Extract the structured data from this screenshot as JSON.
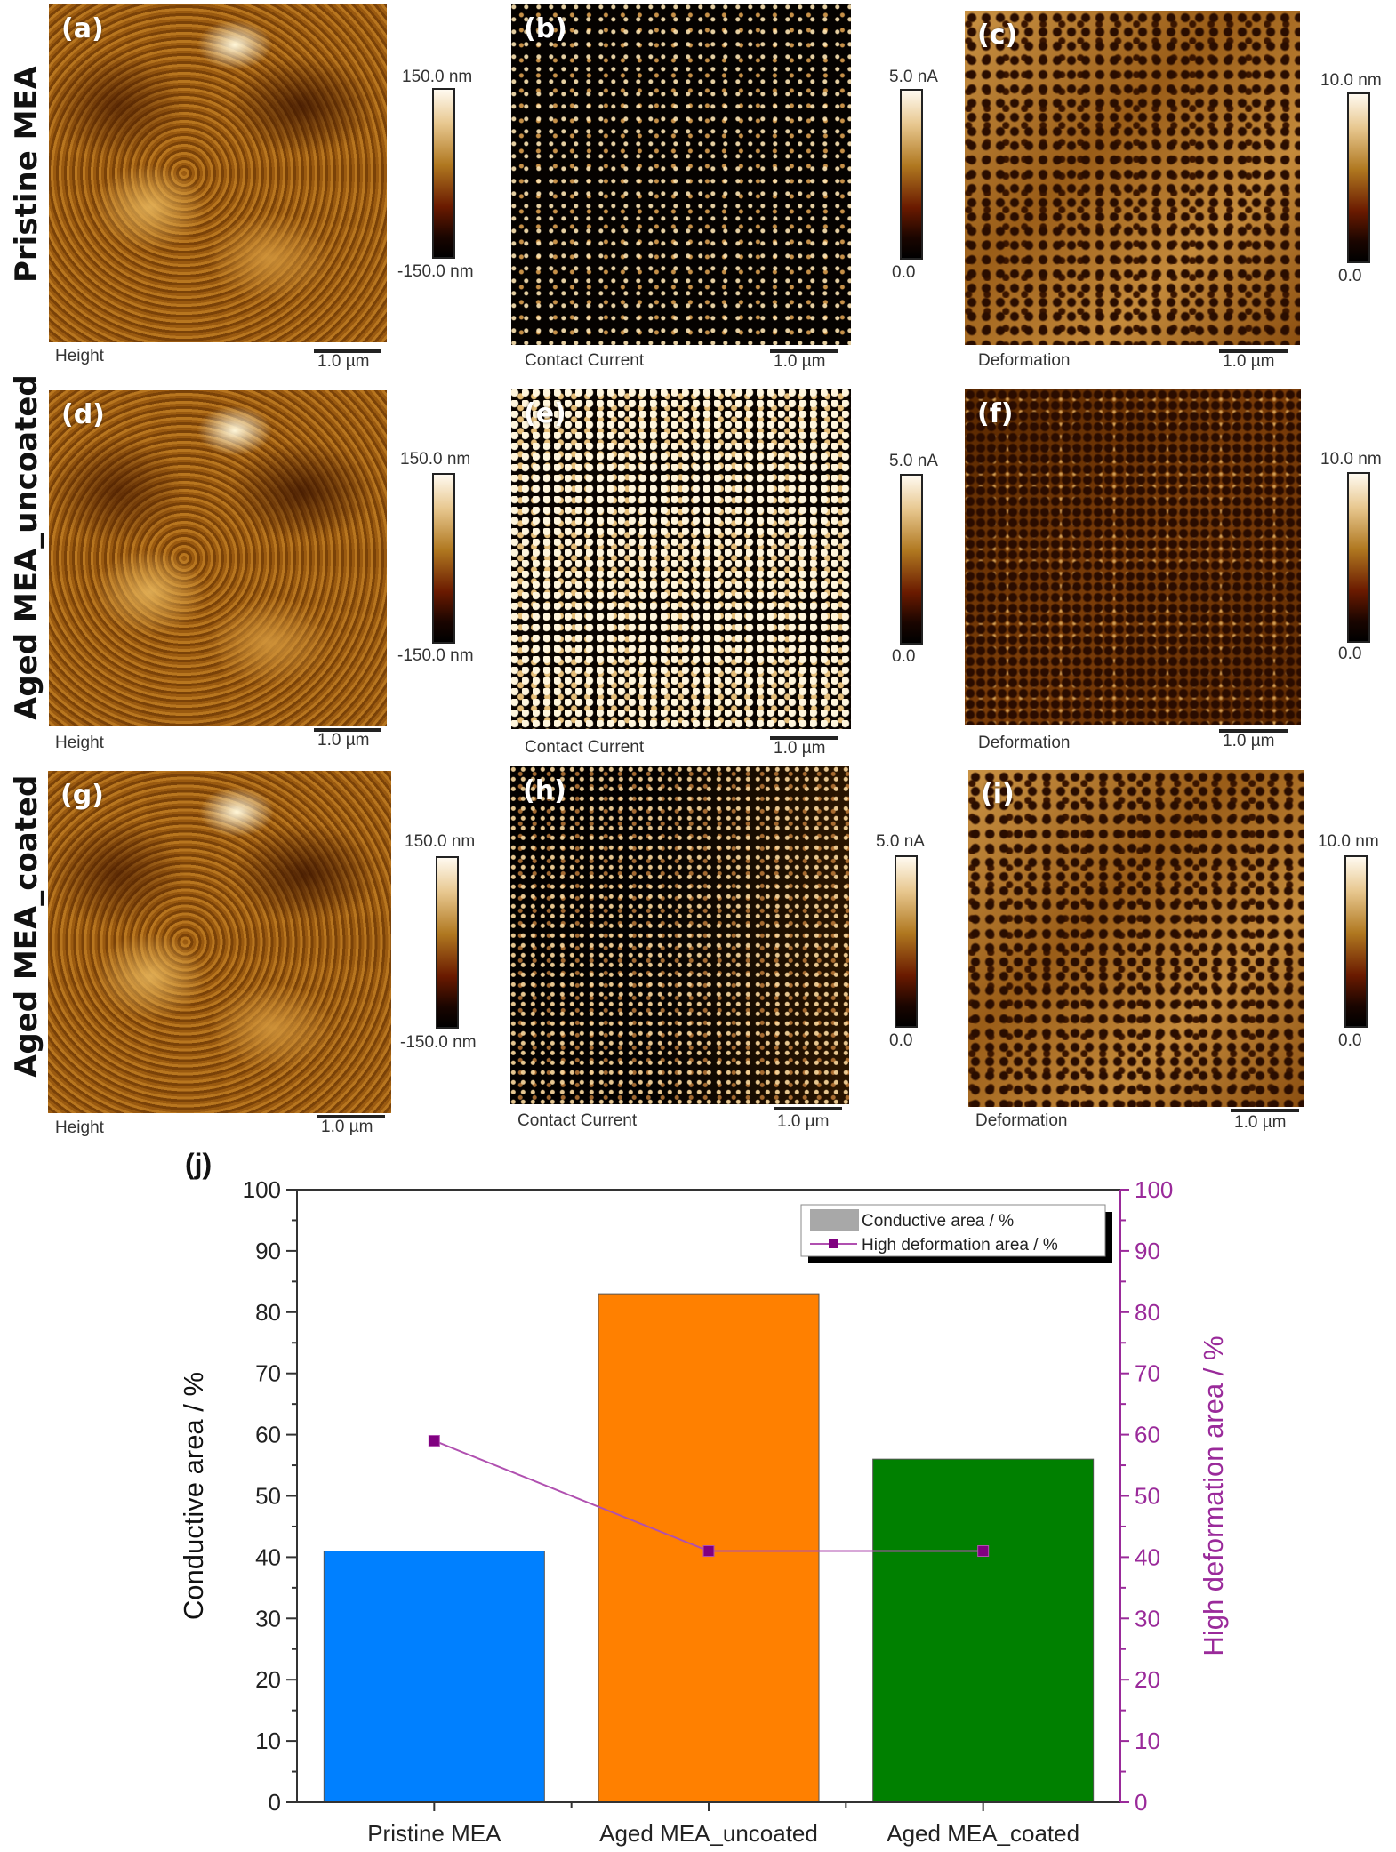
{
  "row_labels": [
    "Pristine MEA",
    "Aged MEA_uncoated",
    "Aged MEA_coated"
  ],
  "panels": [
    {
      "letter": "(a)",
      "channel": "Height",
      "scale": "1.0 µm",
      "cbar_top": "150.0 nm",
      "cbar_bottom": "-150.0 nm",
      "type": "height"
    },
    {
      "letter": "(b)",
      "channel": "Contact Current",
      "scale": "1.0 µm",
      "cbar_top": "5.0 nA",
      "cbar_bottom": "0.0",
      "type": "current"
    },
    {
      "letter": "(c)",
      "channel": "Deformation",
      "scale": "1.0 µm",
      "cbar_top": "10.0 nm",
      "cbar_bottom": "0.0",
      "type": "deformation"
    },
    {
      "letter": "(d)",
      "channel": "Height",
      "scale": "1.0 µm",
      "cbar_top": "150.0 nm",
      "cbar_bottom": "-150.0 nm",
      "type": "height"
    },
    {
      "letter": "(e)",
      "channel": "Contact Current",
      "scale": "1.0 µm",
      "cbar_top": "5.0 nA",
      "cbar_bottom": "0.0",
      "type": "current"
    },
    {
      "letter": "(f)",
      "channel": "Deformation",
      "scale": "1.0 µm",
      "cbar_top": "10.0 nm",
      "cbar_bottom": "0.0",
      "type": "deformation"
    },
    {
      "letter": "(g)",
      "channel": "Height",
      "scale": "1.0 µm",
      "cbar_top": "150.0 nm",
      "cbar_bottom": "-150.0 nm",
      "type": "height"
    },
    {
      "letter": "(h)",
      "channel": "Contact Current",
      "scale": "1.0 µm",
      "cbar_top": "5.0 nA",
      "cbar_bottom": "0.0",
      "type": "current"
    },
    {
      "letter": "(i)",
      "channel": "Deformation",
      "scale": "1.0 µm",
      "cbar_top": "10.0 nm",
      "cbar_bottom": "0.0",
      "type": "deformation"
    }
  ],
  "chart_data": {
    "type": "bar",
    "panel_letter": "(j)",
    "categories": [
      "Pristine MEA",
      "Aged MEA_uncoated",
      "Aged MEA_coated"
    ],
    "series": [
      {
        "name": "Conductive area / %",
        "type": "bar",
        "axis": "left",
        "values": [
          41,
          83,
          56
        ],
        "colors": [
          "#0080ff",
          "#ff8000",
          "#008000"
        ]
      },
      {
        "name": "High deformation area / %",
        "type": "line",
        "axis": "right",
        "values": [
          59,
          41,
          41
        ],
        "color": "#800080",
        "marker": "square"
      }
    ],
    "title": "",
    "xlabel": "",
    "ylabel": "Conductive area / %",
    "y2label": "High deformation area / %",
    "ylim": [
      0,
      100
    ],
    "y2lim": [
      0,
      100
    ],
    "yticks": [
      0,
      10,
      20,
      30,
      40,
      50,
      60,
      70,
      80,
      90,
      100
    ],
    "y2ticks": [
      0,
      10,
      20,
      30,
      40,
      50,
      60,
      70,
      80,
      90,
      100
    ],
    "legend_position": "upper right",
    "legend": [
      "Conductive area / %",
      "High deformation area / %"
    ],
    "grid": false,
    "colors": {
      "right_axis": "#9a2a9a",
      "legend_swatch": "#a8a8a8"
    }
  }
}
